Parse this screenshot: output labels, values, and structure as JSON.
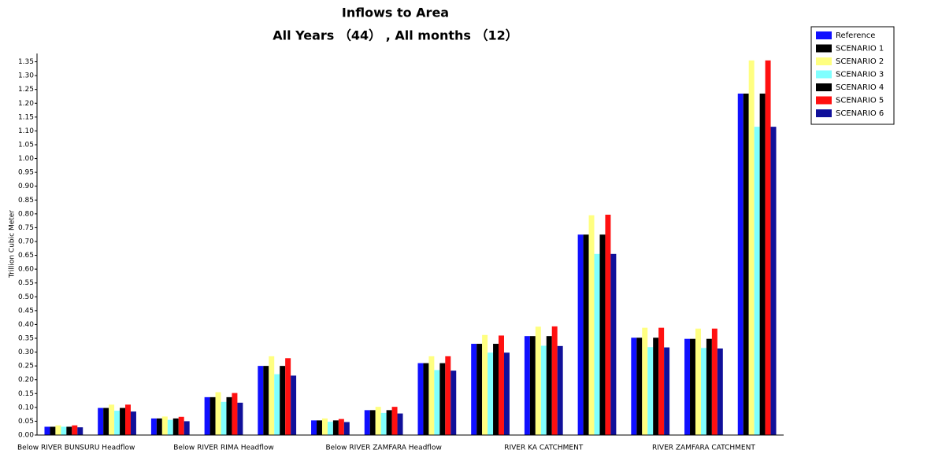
{
  "chart_data": {
    "type": "bar",
    "title": "Inflows to Area",
    "subtitle": "All Years （44） , All months （12）",
    "y_label": "Trillion Cubic Meter",
    "categories": [
      "Below RIVER BUNSURU Headflow",
      null,
      null,
      "Below RIVER RIMA Headflow",
      null,
      null,
      "Below RIVER ZAMFARA Headflow",
      null,
      null,
      "RIVER KA CATCHMENT",
      null,
      null,
      "RIVER ZAMFARA CATCHMENT",
      null
    ],
    "series": [
      {
        "name": "Reference",
        "color": "#1010ff",
        "values": [
          0.03,
          0.098,
          0.06,
          0.137,
          0.25,
          0.053,
          0.09,
          0.26,
          0.33,
          0.358,
          0.725,
          0.352,
          0.348,
          1.235
        ]
      },
      {
        "name": "SCENARIO 1",
        "color": "#000000",
        "values": [
          0.03,
          0.098,
          0.06,
          0.137,
          0.25,
          0.053,
          0.09,
          0.26,
          0.33,
          0.358,
          0.725,
          0.352,
          0.348,
          1.235
        ]
      },
      {
        "name": "SCENARIO 2",
        "color": "#ffff80",
        "values": [
          0.035,
          0.11,
          0.067,
          0.155,
          0.285,
          0.06,
          0.102,
          0.285,
          0.362,
          0.392,
          0.795,
          0.388,
          0.385,
          1.355
        ]
      },
      {
        "name": "SCENARIO 3",
        "color": "#80ffff",
        "values": [
          0.03,
          0.088,
          0.055,
          0.12,
          0.22,
          0.048,
          0.08,
          0.235,
          0.298,
          0.323,
          0.655,
          0.318,
          0.315,
          1.115
        ]
      },
      {
        "name": "SCENARIO 4",
        "color": "#000000",
        "values": [
          0.03,
          0.098,
          0.06,
          0.137,
          0.25,
          0.053,
          0.09,
          0.26,
          0.33,
          0.358,
          0.725,
          0.352,
          0.348,
          1.235
        ]
      },
      {
        "name": "SCENARIO 5",
        "color": "#ff1010",
        "values": [
          0.035,
          0.11,
          0.066,
          0.152,
          0.278,
          0.058,
          0.102,
          0.285,
          0.36,
          0.393,
          0.797,
          0.388,
          0.385,
          1.355
        ]
      },
      {
        "name": "SCENARIO 6",
        "color": "#10109a",
        "values": [
          0.028,
          0.085,
          0.05,
          0.117,
          0.215,
          0.047,
          0.078,
          0.233,
          0.298,
          0.322,
          0.655,
          0.317,
          0.313,
          1.115
        ]
      }
    ],
    "ylim": [
      0,
      1.38
    ],
    "yticks": [
      {
        "value": 0,
        "label": "0.00"
      },
      {
        "value": 0.05,
        "label": "0.05"
      },
      {
        "value": 0.1,
        "label": "0.10"
      },
      {
        "value": 0.15,
        "label": "0.15"
      },
      {
        "value": 0.2,
        "label": "0.20"
      },
      {
        "value": 0.25,
        "label": "0.25"
      },
      {
        "value": 0.3,
        "label": "0.30"
      },
      {
        "value": 0.35,
        "label": "0.35"
      },
      {
        "value": 0.4,
        "label": "0.40"
      },
      {
        "value": 0.45,
        "label": "0.45"
      },
      {
        "value": 0.5,
        "label": "0.50"
      },
      {
        "value": 0.55,
        "label": "0.55"
      },
      {
        "value": 0.6,
        "label": "0.60"
      },
      {
        "value": 0.65,
        "label": "0.65"
      },
      {
        "value": 0.7,
        "label": "0.70"
      },
      {
        "value": 0.75,
        "label": "0.75"
      },
      {
        "value": 0.8,
        "label": "0.80"
      },
      {
        "value": 0.85,
        "label": "0.85"
      },
      {
        "value": 0.9,
        "label": "0.90"
      },
      {
        "value": 0.95,
        "label": "0.95"
      },
      {
        "value": 1,
        "label": "1.00"
      },
      {
        "value": 1.05,
        "label": "1.05"
      },
      {
        "value": 1.1,
        "label": "1.10"
      },
      {
        "value": 1.15,
        "label": "1.15"
      },
      {
        "value": 1.2,
        "label": "1.20"
      },
      {
        "value": 1.25,
        "label": "1.25"
      },
      {
        "value": 1.3,
        "label": "1.30"
      },
      {
        "value": 1.35,
        "label": "1.35"
      }
    ],
    "legend": "upper right"
  }
}
